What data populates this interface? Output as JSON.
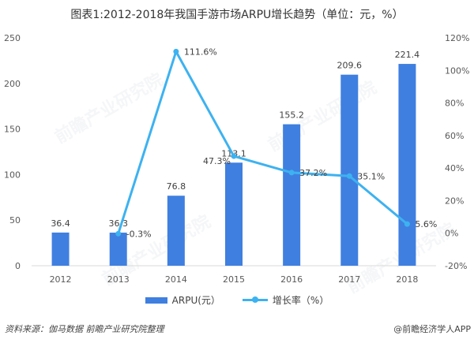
{
  "title": "图表1:2012-2018年我国手游市场ARPU增长趋势（单位：元，%）",
  "source": "资料来源：伽马数据  前瞻产业研究院整理",
  "credit": "@前瞻经济学人APP",
  "watermark": "前瞻产业研究院",
  "colors": {
    "bar": "#3F7FE0",
    "line": "#3DB2F0",
    "axis": "#D9D9D9"
  },
  "chart_data": {
    "type": "bar+line",
    "title": "图表1:2012-2018年我国手游市场ARPU增长趋势（单位：元，%）",
    "categories": [
      "2012",
      "2013",
      "2014",
      "2015",
      "2016",
      "2017",
      "2018"
    ],
    "series": [
      {
        "name": "ARPU(元）",
        "type": "bar",
        "axis": "left",
        "values": [
          36.4,
          36.3,
          76.8,
          113.1,
          155.2,
          209.6,
          221.4
        ],
        "labels": [
          "36.4",
          "36.3",
          "76.8",
          "113.1",
          "155.2",
          "209.6",
          "221.4"
        ]
      },
      {
        "name": "增长率（%）",
        "type": "line",
        "axis": "right",
        "values": [
          null,
          -0.3,
          111.6,
          47.3,
          37.2,
          35.1,
          5.6
        ],
        "labels": [
          null,
          "-0.3%",
          "111.6%",
          "47.3%",
          "37.2%",
          "35.1%",
          "5.6%"
        ]
      }
    ],
    "left_axis": {
      "ylim": [
        0,
        250
      ],
      "ticks": [
        "0",
        "50",
        "100",
        "150",
        "200",
        "250"
      ]
    },
    "right_axis": {
      "ylim": [
        -20,
        120
      ],
      "ticks": [
        "-20%",
        "0%",
        "20%",
        "40%",
        "60%",
        "80%",
        "100%",
        "120%"
      ]
    },
    "xlabel": "",
    "ylabel": "",
    "grid": false,
    "legend": {
      "position": "bottom",
      "entries": [
        "ARPU(元）",
        "增长率（%）"
      ]
    }
  }
}
